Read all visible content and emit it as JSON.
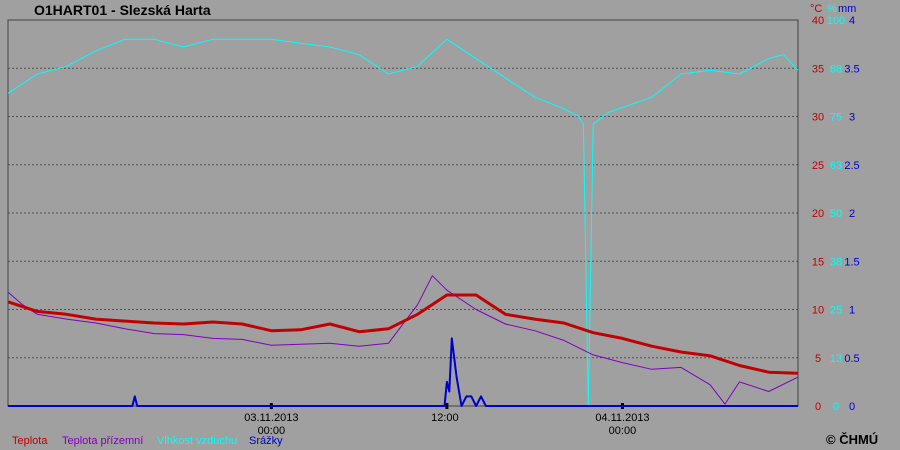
{
  "chart_data": {
    "type": "line",
    "title": "O1HART01 - Slezská Harta",
    "copyright": "© ČHMÚ",
    "units": {
      "temperature": "°C",
      "humidity": "%",
      "precip": "mm"
    },
    "x_range": [
      "2013-11-02T06:00",
      "2013-11-04T12:00"
    ],
    "x_ticks": [
      {
        "t": "2013-11-03T00:00",
        "label": "03.11.2013\n00:00"
      },
      {
        "t": "2013-11-03T12:00",
        "label": "12:00"
      },
      {
        "t": "2013-11-04T00:00",
        "label": "04.11.2013\n00:00"
      }
    ],
    "y_axes": {
      "temperature": {
        "range": [
          0,
          40
        ],
        "ticks": [
          "0",
          "5",
          "10",
          "15",
          "20",
          "25",
          "30",
          "35",
          "40"
        ],
        "color": "#c00000"
      },
      "humidity": {
        "range": [
          0,
          100
        ],
        "ticks": [
          "0",
          "13",
          "25",
          "38",
          "50",
          "63",
          "75",
          "88",
          "100"
        ],
        "color": "#00ffff"
      },
      "precip": {
        "range": [
          0,
          4
        ],
        "ticks": [
          "0",
          "0.5",
          "1",
          "1.5",
          "2",
          "2.5",
          "3",
          "3.5",
          "4"
        ],
        "color": "#0000cc"
      }
    },
    "grid": true,
    "series": [
      {
        "name": "Teplota",
        "axis": "temperature",
        "color": "#c00000",
        "x": [
          "2013-11-02T06:00",
          "2013-11-02T08:00",
          "2013-11-02T10:00",
          "2013-11-02T12:00",
          "2013-11-02T14:00",
          "2013-11-02T16:00",
          "2013-11-02T18:00",
          "2013-11-02T20:00",
          "2013-11-02T22:00",
          "2013-11-03T00:00",
          "2013-11-03T02:00",
          "2013-11-03T04:00",
          "2013-11-03T06:00",
          "2013-11-03T08:00",
          "2013-11-03T10:00",
          "2013-11-03T12:00",
          "2013-11-03T14:00",
          "2013-11-03T16:00",
          "2013-11-03T18:00",
          "2013-11-03T20:00",
          "2013-11-03T22:00",
          "2013-11-04T00:00",
          "2013-11-04T02:00",
          "2013-11-04T04:00",
          "2013-11-04T06:00",
          "2013-11-04T08:00",
          "2013-11-04T10:00",
          "2013-11-04T12:00"
        ],
        "y": [
          10.8,
          9.8,
          9.5,
          9.0,
          8.8,
          8.6,
          8.5,
          8.7,
          8.5,
          7.8,
          7.9,
          8.5,
          7.7,
          8.0,
          9.5,
          11.5,
          11.5,
          9.5,
          9.0,
          8.6,
          7.6,
          7.0,
          6.2,
          5.6,
          5.2,
          4.2,
          3.5,
          3.4
        ]
      },
      {
        "name": "Teplota přízemní",
        "axis": "temperature",
        "color": "#8000c0",
        "x": [
          "2013-11-02T06:00",
          "2013-11-02T07:00",
          "2013-11-02T08:00",
          "2013-11-02T10:00",
          "2013-11-02T12:00",
          "2013-11-02T14:00",
          "2013-11-02T16:00",
          "2013-11-02T18:00",
          "2013-11-02T20:00",
          "2013-11-02T22:00",
          "2013-11-03T00:00",
          "2013-11-03T02:00",
          "2013-11-03T04:00",
          "2013-11-03T06:00",
          "2013-11-03T08:00",
          "2013-11-03T10:00",
          "2013-11-03T11:00",
          "2013-11-03T12:00",
          "2013-11-03T14:00",
          "2013-11-03T16:00",
          "2013-11-03T18:00",
          "2013-11-03T20:00",
          "2013-11-03T22:00",
          "2013-11-04T00:00",
          "2013-11-04T02:00",
          "2013-11-04T04:00",
          "2013-11-04T06:00",
          "2013-11-04T07:00",
          "2013-11-04T08:00",
          "2013-11-04T10:00",
          "2013-11-04T12:00"
        ],
        "y": [
          11.8,
          10.5,
          9.5,
          9.0,
          8.6,
          8.0,
          7.5,
          7.4,
          7.0,
          6.9,
          6.3,
          6.4,
          6.5,
          6.2,
          6.5,
          10.5,
          13.5,
          12.0,
          10.0,
          8.5,
          7.8,
          6.8,
          5.3,
          4.5,
          3.8,
          4.0,
          2.2,
          0.2,
          2.5,
          1.5,
          3.0
        ]
      },
      {
        "name": "Vlhkost vzduchu",
        "axis": "humidity",
        "color": "#00ffff",
        "x": [
          "2013-11-02T06:00",
          "2013-11-02T08:00",
          "2013-11-02T10:00",
          "2013-11-02T12:00",
          "2013-11-02T14:00",
          "2013-11-02T16:00",
          "2013-11-02T18:00",
          "2013-11-02T20:00",
          "2013-11-02T22:00",
          "2013-11-03T00:00",
          "2013-11-03T02:00",
          "2013-11-03T04:00",
          "2013-11-03T06:00",
          "2013-11-03T08:00",
          "2013-11-03T10:00",
          "2013-11-03T12:00",
          "2013-11-03T14:00",
          "2013-11-03T16:00",
          "2013-11-03T18:00",
          "2013-11-03T20:00",
          "2013-11-03T21:00",
          "2013-11-03T21:20",
          "2013-11-03T21:40",
          "2013-11-03T22:00",
          "2013-11-03T23:00",
          "2013-11-04T02:00",
          "2013-11-04T04:00",
          "2013-11-04T06:00",
          "2013-11-04T08:00",
          "2013-11-04T10:00",
          "2013-11-04T11:00",
          "2013-11-04T12:00"
        ],
        "y": [
          81,
          86,
          88,
          92,
          95,
          95,
          93,
          95,
          95,
          95,
          94,
          93,
          91,
          86,
          88,
          95,
          90,
          85,
          80,
          77,
          75,
          73,
          0,
          73,
          76,
          80,
          86,
          87,
          86,
          90,
          91,
          87
        ]
      },
      {
        "name": "Srážky",
        "axis": "precip",
        "color": "#0000cc",
        "x": [
          "2013-11-02T06:00",
          "2013-11-02T14:30",
          "2013-11-02T14:40",
          "2013-11-02T14:50",
          "2013-11-03T11:50",
          "2013-11-03T12:00",
          "2013-11-03T12:10",
          "2013-11-03T12:20",
          "2013-11-03T12:40",
          "2013-11-03T13:00",
          "2013-11-03T13:20",
          "2013-11-03T13:40",
          "2013-11-03T14:00",
          "2013-11-03T14:20",
          "2013-11-03T14:40",
          "2013-11-04T12:00"
        ],
        "y": [
          0,
          0,
          0.1,
          0,
          0,
          0.25,
          0.15,
          0.7,
          0.3,
          0,
          0.1,
          0.1,
          0,
          0.1,
          0,
          0
        ]
      }
    ]
  }
}
